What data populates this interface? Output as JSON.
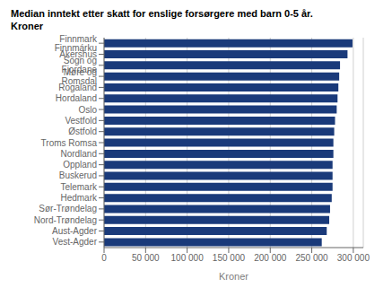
{
  "chart_data": {
    "type": "bar",
    "title": "Median inntekt etter skatt for enslige forsørgere med barn 0-5 år.",
    "subtitle": "Kroner",
    "xlabel": "Kroner",
    "orientation": "horizontal",
    "categories": [
      "Vest-Agder",
      "Aust-Agder",
      "Nord-Trøndelag",
      "Sør-Trøndelag",
      "Hedmark",
      "Telemark",
      "Buskerud",
      "Oppland",
      "Nordland",
      "Troms Romsa",
      "Østfold",
      "Vestfold",
      "Oslo",
      "Hordaland",
      "Rogaland",
      "Møre og Romsdal",
      "Sogn og Fjordane",
      "Akershus",
      "Finnmark Finnmárku"
    ],
    "values": [
      262000,
      268000,
      271000,
      272000,
      274000,
      275000,
      275000,
      275000,
      276000,
      276000,
      277000,
      278000,
      280000,
      281000,
      282000,
      283000,
      284000,
      293000,
      299000
    ],
    "color": "#1a3a7a",
    "xlim": [
      0,
      312000
    ],
    "xticks": [
      0,
      {
        "value": 50000,
        "label": "50 000"
      },
      {
        "value": 100000,
        "label": "100 000"
      },
      {
        "value": 150000,
        "label": "150 000"
      },
      {
        "value": 200000,
        "label": "200 000"
      },
      {
        "value": 250000,
        "label": "250 000"
      },
      {
        "value": 300000,
        "label": "300 000"
      }
    ],
    "grid": true
  }
}
